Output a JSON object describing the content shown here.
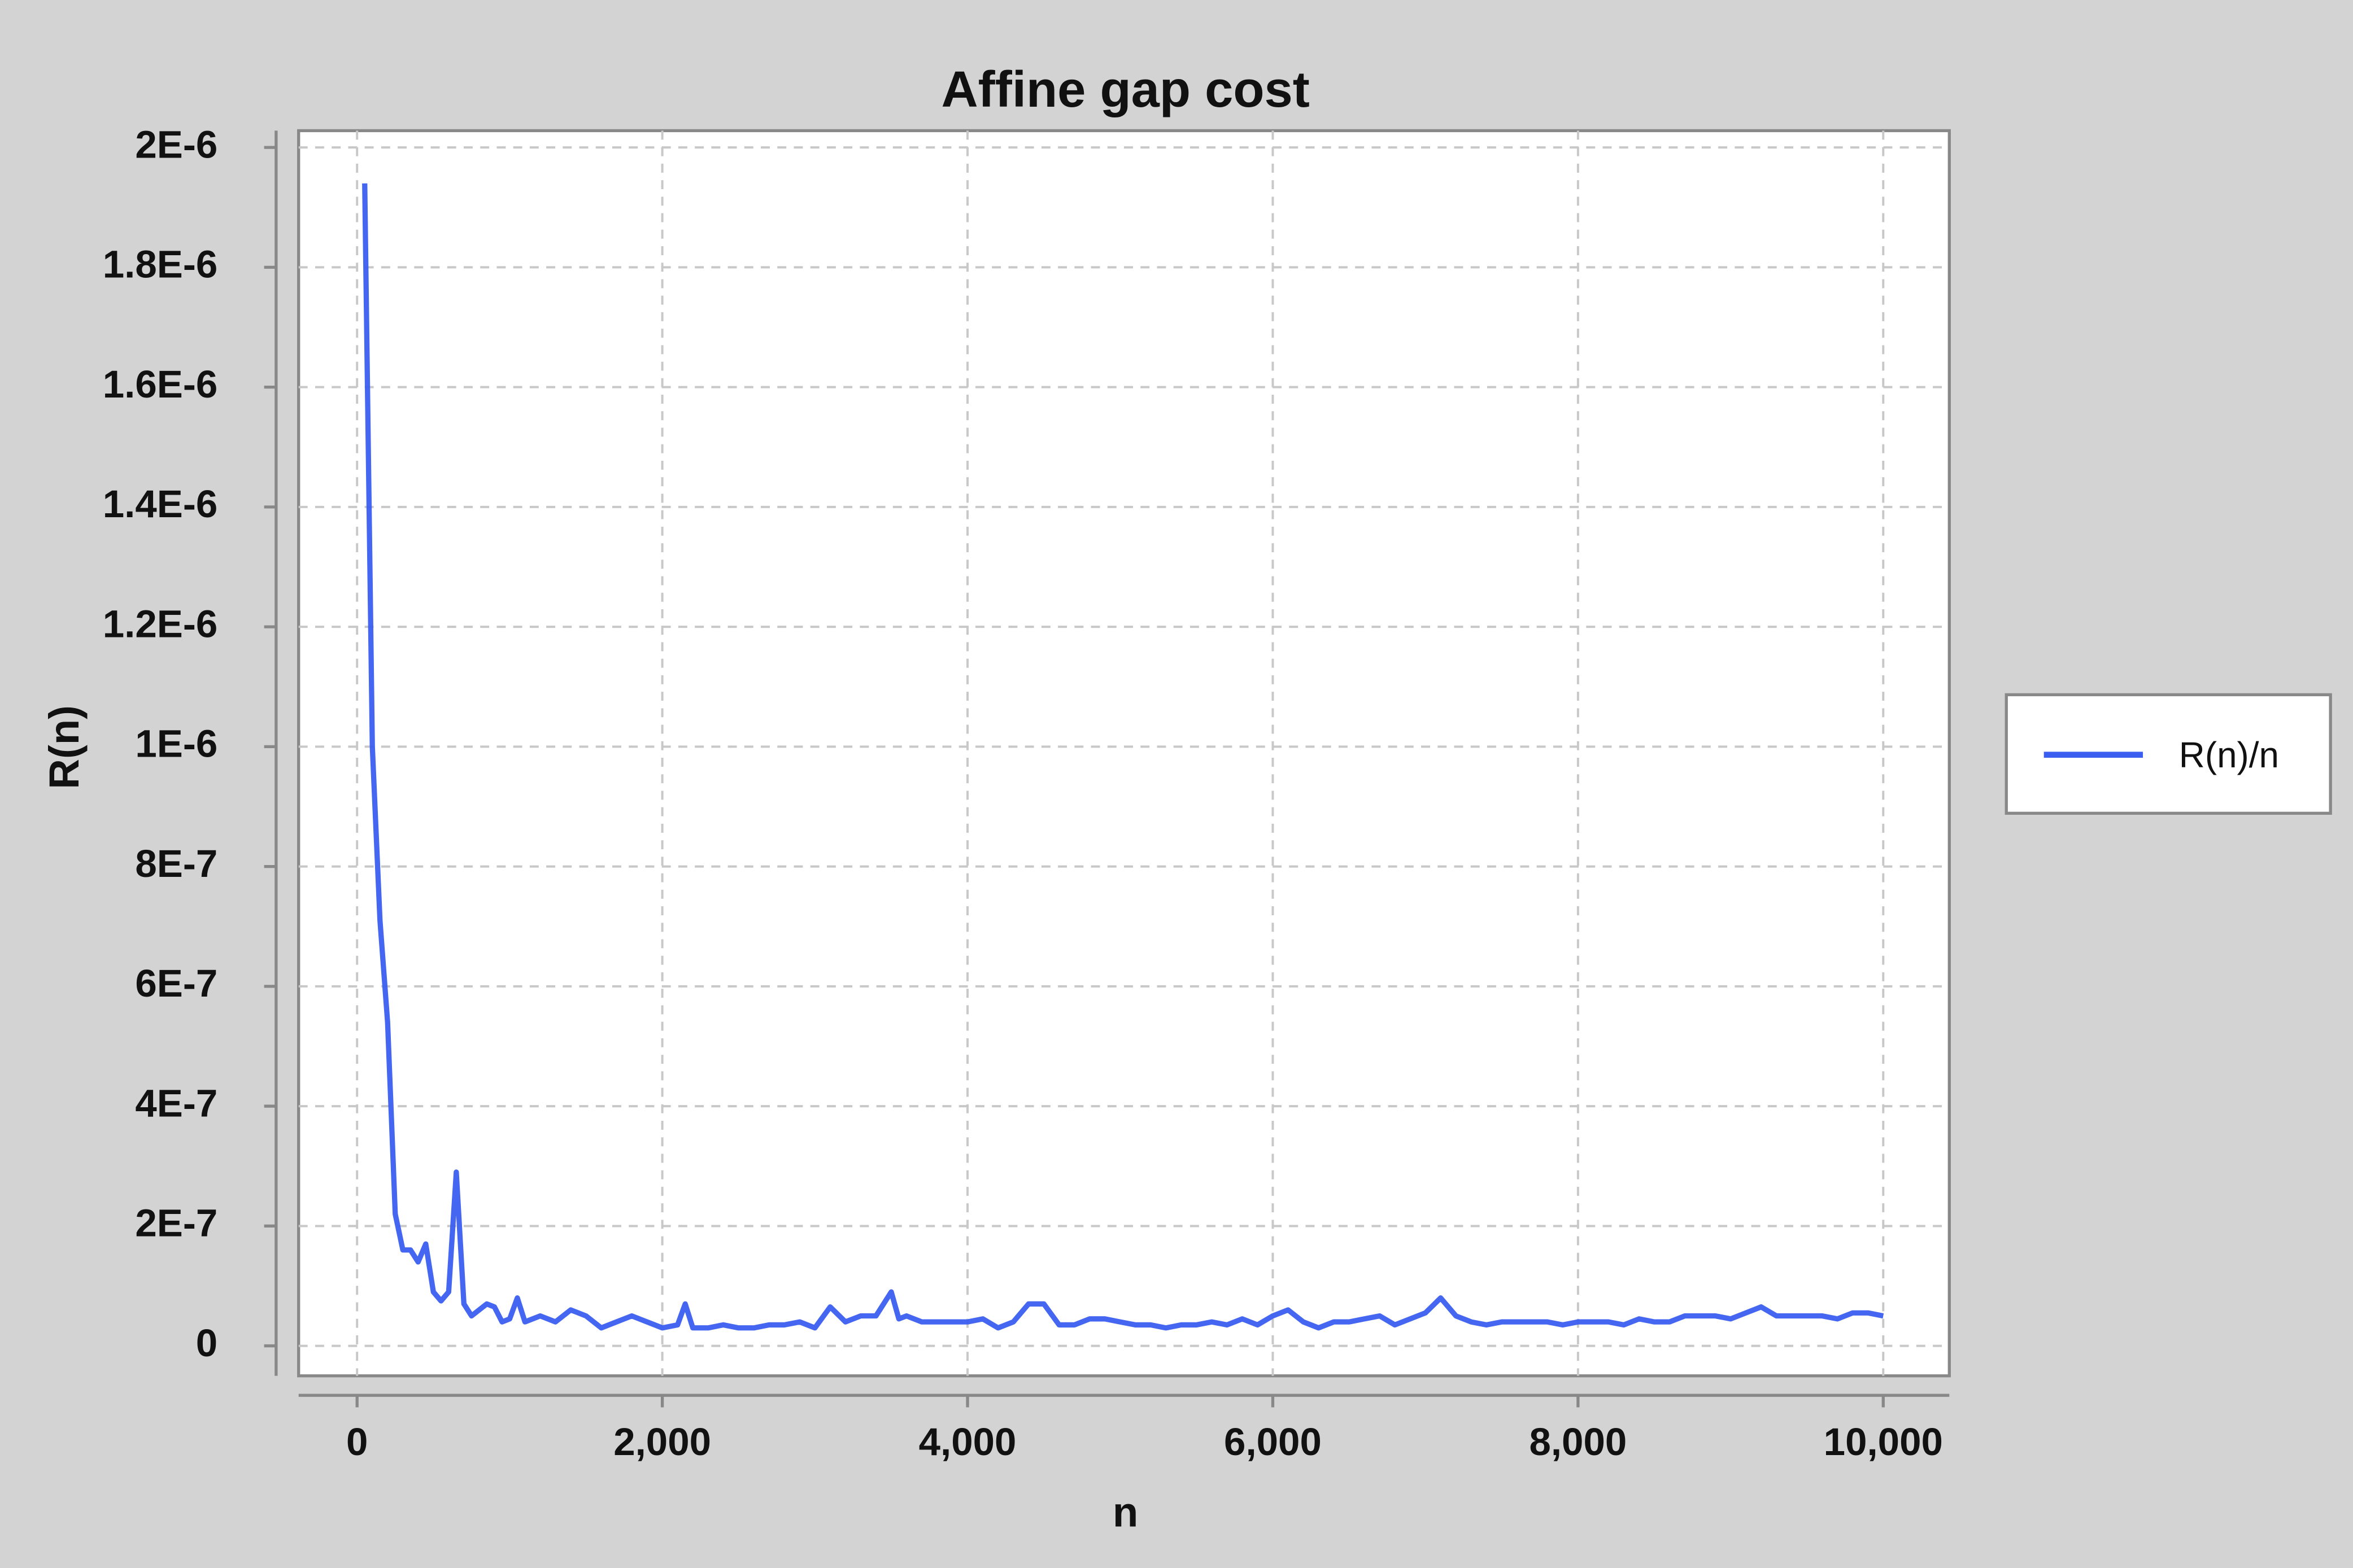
{
  "chart_data": {
    "type": "line",
    "title": "Affine gap cost",
    "x_label": "n",
    "y_label": "R(n)",
    "x": [
      50,
      100,
      150,
      200,
      250,
      300,
      350,
      400,
      450,
      500,
      550,
      600,
      650,
      700,
      750,
      800,
      850,
      900,
      950,
      1000,
      1050,
      1100,
      1200,
      1300,
      1400,
      1500,
      1600,
      1700,
      1800,
      1900,
      2000,
      2100,
      2150,
      2200,
      2300,
      2400,
      2500,
      2600,
      2700,
      2800,
      2900,
      3000,
      3100,
      3200,
      3300,
      3400,
      3500,
      3550,
      3600,
      3700,
      3800,
      3900,
      4000,
      4100,
      4200,
      4300,
      4400,
      4500,
      4600,
      4700,
      4800,
      4900,
      5000,
      5100,
      5200,
      5300,
      5400,
      5500,
      5600,
      5700,
      5800,
      5900,
      6000,
      6100,
      6200,
      6300,
      6400,
      6500,
      6600,
      6700,
      6800,
      6900,
      7000,
      7100,
      7200,
      7300,
      7400,
      7500,
      7600,
      7700,
      7800,
      7900,
      8000,
      8100,
      8200,
      8300,
      8400,
      8500,
      8600,
      8700,
      8800,
      8900,
      9000,
      9100,
      9200,
      9300,
      9400,
      9500,
      9600,
      9700,
      9800,
      9900,
      10000
    ],
    "series": [
      {
        "name": "R(n)/n",
        "color": "#3a5ef0",
        "values": [
          1.94e-06,
          1e-06,
          7.1e-07,
          5.4e-07,
          2.2e-07,
          1.6e-07,
          1.6e-07,
          1.4e-07,
          1.7e-07,
          9e-08,
          7.5e-08,
          9e-08,
          2.9e-07,
          7e-08,
          5e-08,
          6e-08,
          7e-08,
          6.5e-08,
          4e-08,
          4.5e-08,
          8e-08,
          4e-08,
          5e-08,
          4e-08,
          6e-08,
          5e-08,
          3e-08,
          4e-08,
          5e-08,
          4e-08,
          3e-08,
          3.5e-08,
          7e-08,
          3e-08,
          3e-08,
          3.5e-08,
          3e-08,
          3e-08,
          3.5e-08,
          3.5e-08,
          4e-08,
          3e-08,
          6.5e-08,
          4e-08,
          5e-08,
          5e-08,
          9e-08,
          4.5e-08,
          5e-08,
          4e-08,
          4e-08,
          4e-08,
          4e-08,
          4.5e-08,
          3e-08,
          4e-08,
          7e-08,
          7e-08,
          3.5e-08,
          3.5e-08,
          4.5e-08,
          4.5e-08,
          4e-08,
          3.5e-08,
          3.5e-08,
          3e-08,
          3.5e-08,
          3.5e-08,
          4e-08,
          3.5e-08,
          4.5e-08,
          3.5e-08,
          5e-08,
          6e-08,
          4e-08,
          3e-08,
          4e-08,
          4e-08,
          4.5e-08,
          5e-08,
          3.5e-08,
          4.5e-08,
          5.5e-08,
          8e-08,
          5e-08,
          4e-08,
          3.5e-08,
          4e-08,
          4e-08,
          4e-08,
          4e-08,
          3.5e-08,
          4e-08,
          4e-08,
          4e-08,
          3.5e-08,
          4.5e-08,
          4e-08,
          4e-08,
          5e-08,
          5e-08,
          5e-08,
          4.5e-08,
          5.5e-08,
          6.5e-08,
          5e-08,
          5e-08,
          5e-08,
          5e-08,
          4.5e-08,
          5.5e-08,
          5.5e-08,
          5e-08
        ]
      }
    ],
    "xlim": [
      -383,
      10433
    ],
    "ylim": [
      -5e-08,
      2.028e-06
    ],
    "xticks": [
      0,
      {
        "value": 2000,
        "label": "2,000"
      },
      {
        "value": 4000,
        "label": "4,000"
      },
      {
        "value": 6000,
        "label": "6,000"
      },
      {
        "value": 8000,
        "label": "8,000"
      },
      {
        "value": 10000,
        "label": "10,000"
      }
    ],
    "yticks": [
      0,
      {
        "value": 2e-07,
        "label": "2E-7"
      },
      {
        "value": 4e-07,
        "label": "4E-7"
      },
      {
        "value": 6e-07,
        "label": "6E-7"
      },
      {
        "value": 8e-07,
        "label": "8E-7"
      },
      {
        "value": 1e-06,
        "label": "1E-6"
      },
      {
        "value": 1.2e-06,
        "label": "1.2E-6"
      },
      {
        "value": 1.4e-06,
        "label": "1.4E-6"
      },
      {
        "value": 1.6e-06,
        "label": "1.6E-6"
      },
      {
        "value": 1.8e-06,
        "label": "1.8E-6"
      },
      {
        "value": 2e-06,
        "label": "2E-6"
      }
    ],
    "grid": true,
    "legend": "right"
  }
}
